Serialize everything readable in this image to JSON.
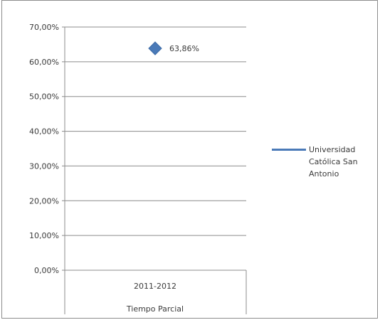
{
  "chart_data": {
    "type": "scatter",
    "title": "",
    "xlabel": "",
    "ylabel": "",
    "categories": [
      "2011-2012",
      "Tiempo Parcial"
    ],
    "ylim": [
      0,
      70
    ],
    "yticks": [
      "0,00%",
      "10,00%",
      "20,00%",
      "30,00%",
      "40,00%",
      "50,00%",
      "60,00%",
      "70,00%"
    ],
    "grid": true,
    "legend": "right",
    "series": [
      {
        "name": "Universidad Católica San Antonio",
        "color": "#4a7ab8",
        "values": [
          63.86
        ],
        "data_labels": [
          "63,86%"
        ]
      }
    ]
  }
}
